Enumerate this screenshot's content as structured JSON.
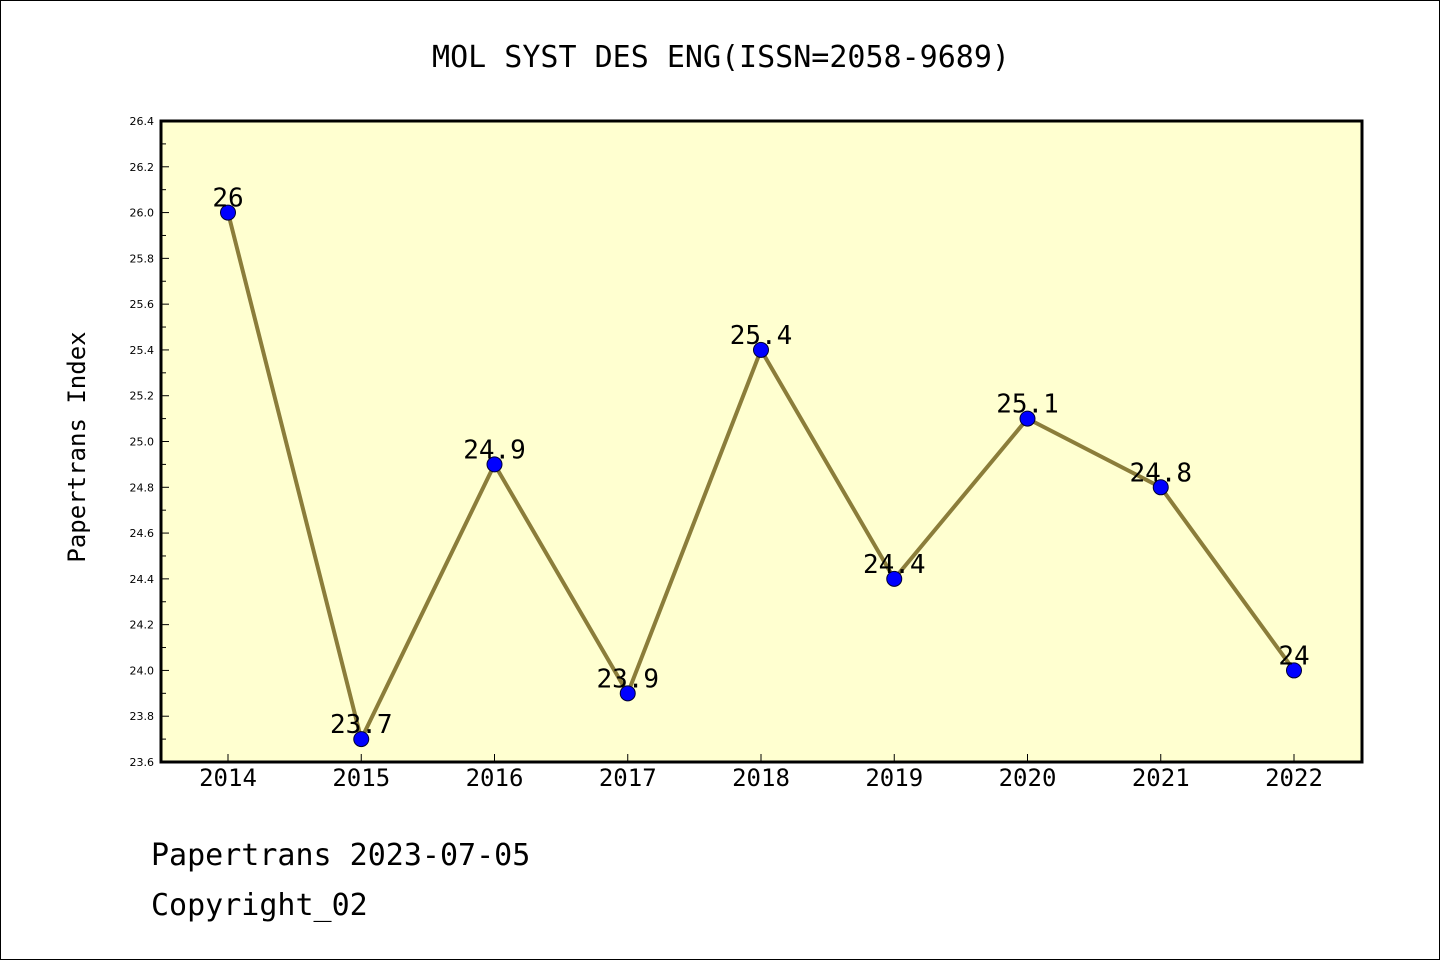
{
  "chart_data": {
    "type": "line",
    "title": "MOL SYST DES ENG(ISSN=2058-9689)",
    "xlabel": "",
    "ylabel": "Papertrans Index",
    "categories": [
      "2014",
      "2015",
      "2016",
      "2017",
      "2018",
      "2019",
      "2020",
      "2021",
      "2022"
    ],
    "values": [
      26,
      23.7,
      24.9,
      23.9,
      25.4,
      24.4,
      25.1,
      24.8,
      24
    ],
    "data_labels": [
      "26",
      "23.7",
      "24.9",
      "23.9",
      "25.4",
      "24.4",
      "25.1",
      "24.8",
      "24"
    ],
    "ylim": [
      23.6,
      26.4
    ],
    "yticks": [
      "23.6",
      "23.8",
      "24.0",
      "24.2",
      "24.4",
      "24.6",
      "24.8",
      "25.0",
      "25.2",
      "25.4",
      "25.6",
      "25.8",
      "26.0",
      "26.2",
      "26.4"
    ],
    "line_color": "#8b7d3a",
    "marker_color": "#0000ff",
    "plot_background": "#ffffd0",
    "grid": false
  },
  "footer": {
    "line1": "Papertrans 2023-07-05",
    "line2": "Copyright_02"
  }
}
